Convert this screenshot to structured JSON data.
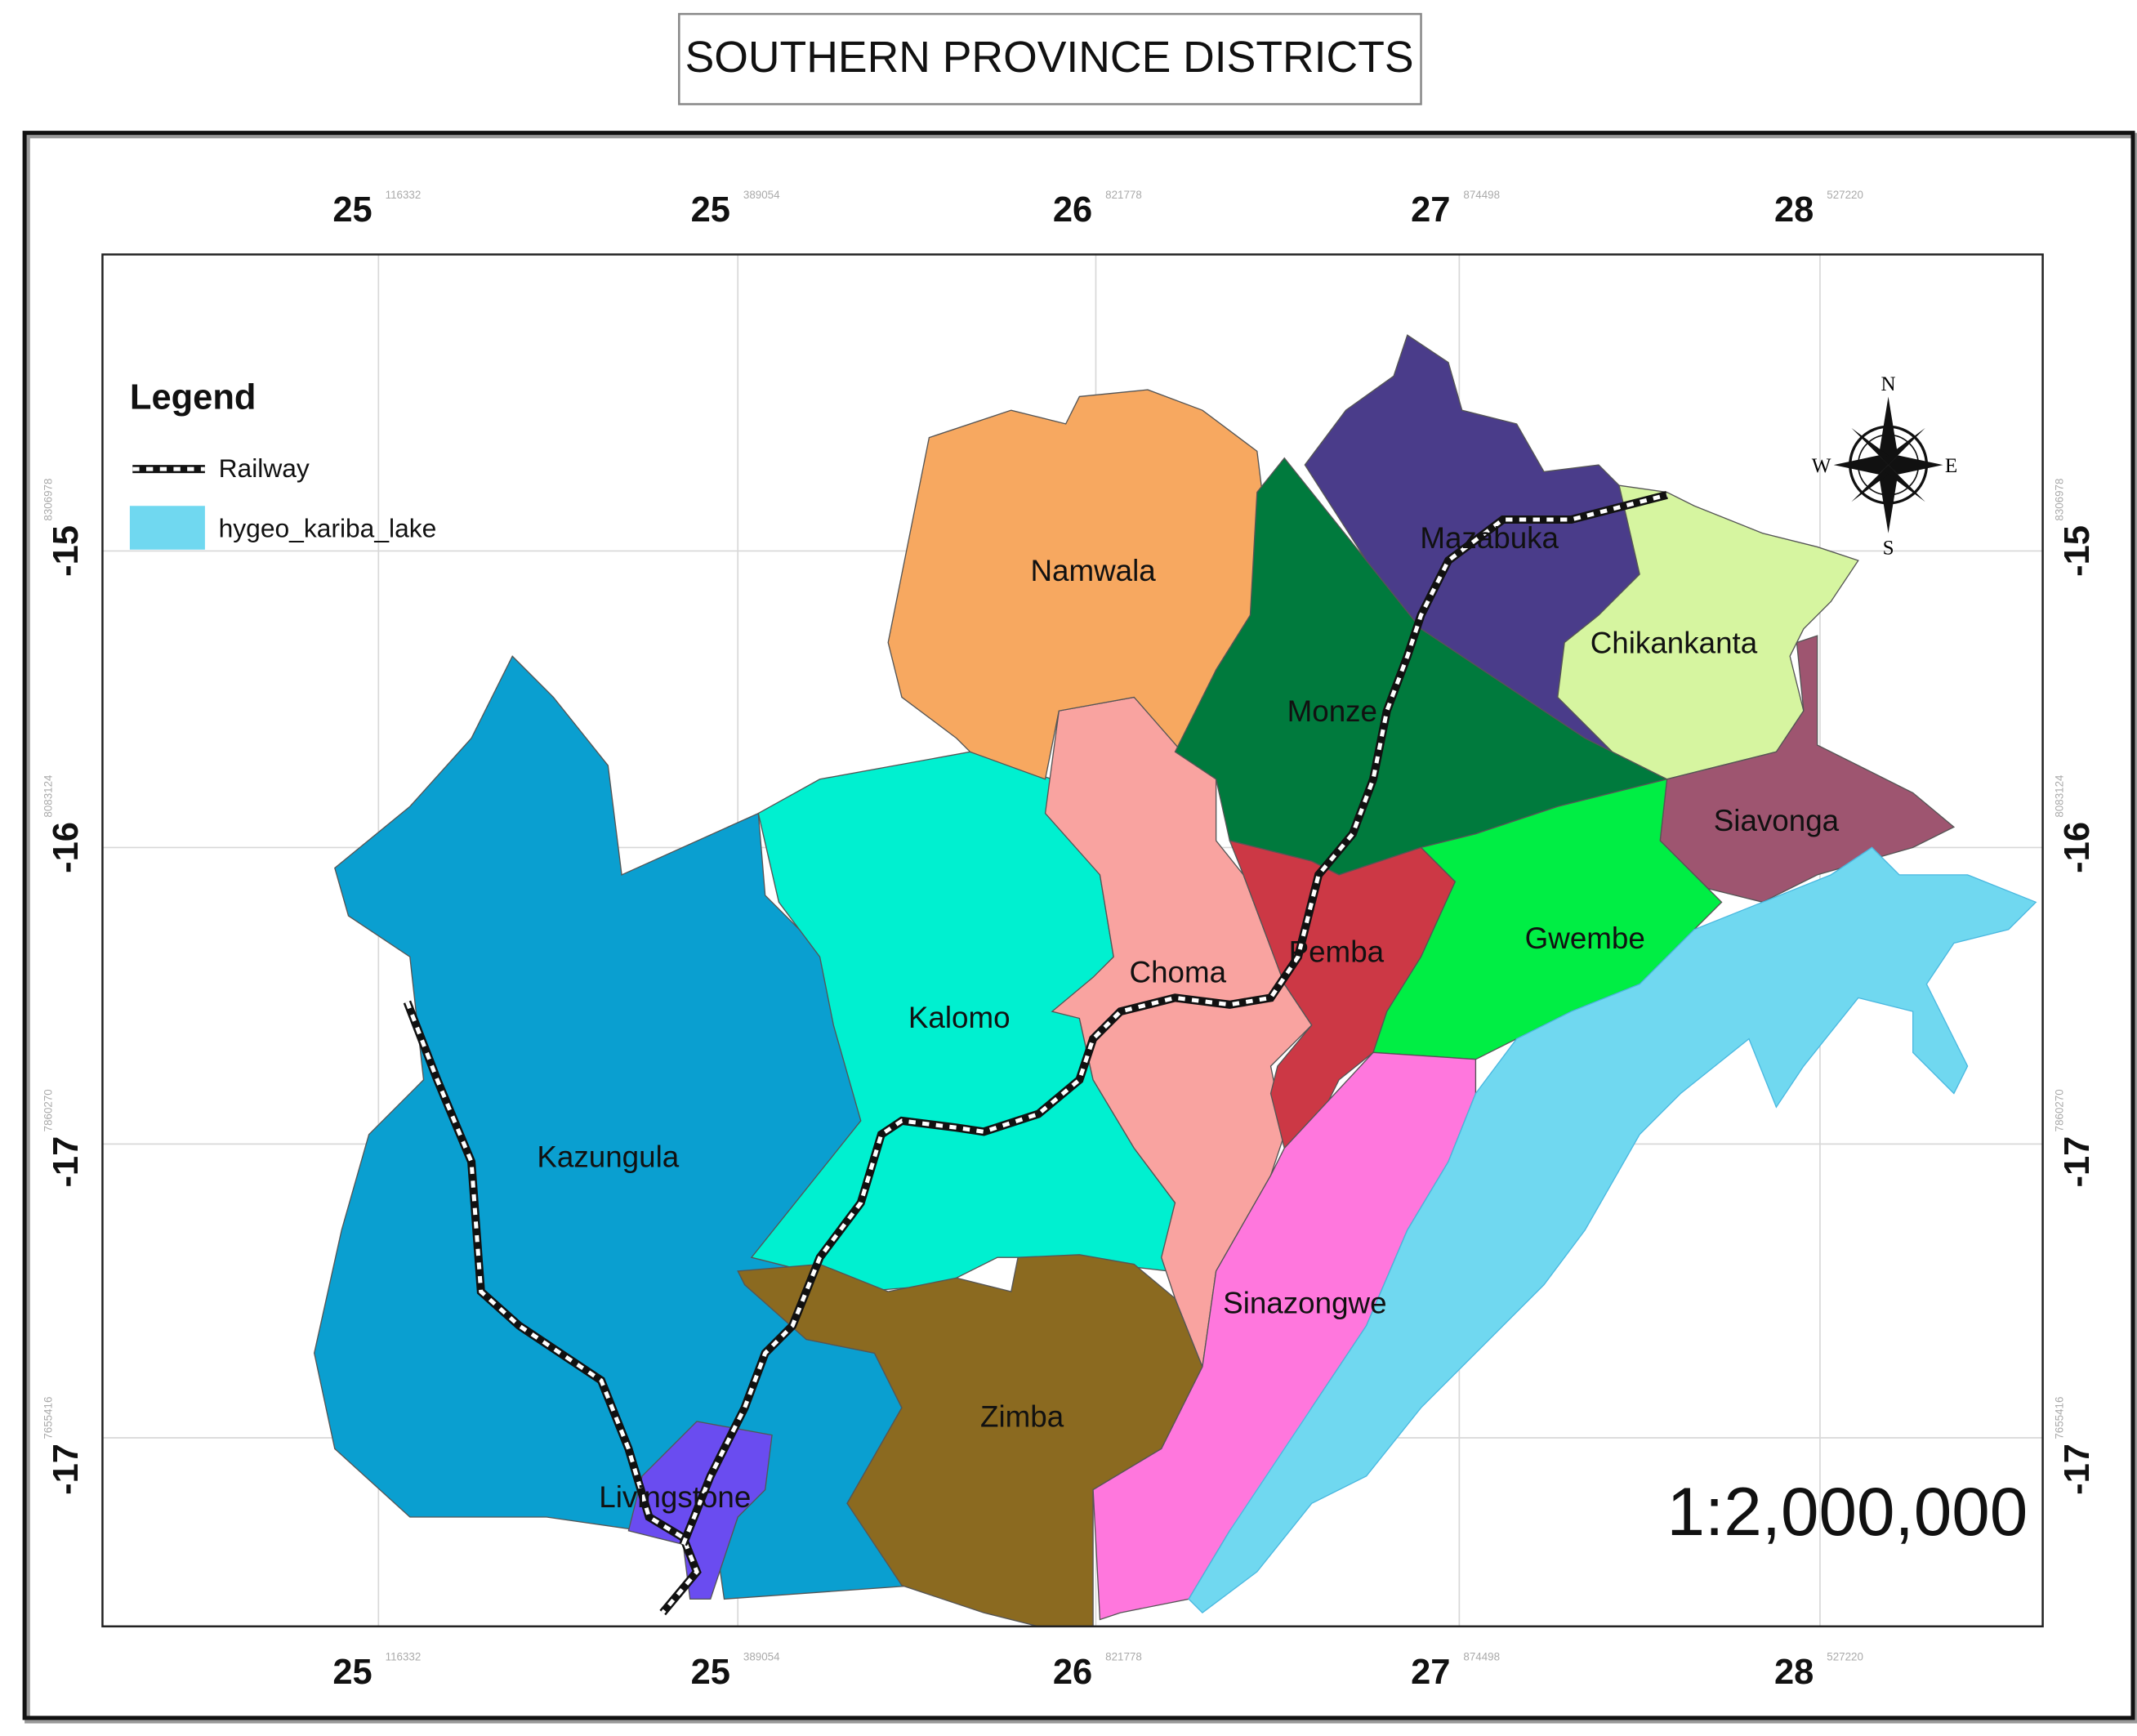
{
  "title": "SOUTHERN PROVINCE DISTRICTS",
  "legend": {
    "title": "Legend",
    "items": [
      "Railway",
      "hygeo_kariba_lake"
    ]
  },
  "compass": {
    "n": "N",
    "e": "E",
    "s": "S",
    "w": "W"
  },
  "scale": "1:2,000,000",
  "districts": [
    "Namwala",
    "Mazabuka",
    "Chikankanta",
    "Monze",
    "Siavonga",
    "Pemba",
    "Gwembe",
    "Choma",
    "Kalomo",
    "Kazungula",
    "Sinazongwe",
    "Zimba",
    "Livingstone"
  ],
  "grid": {
    "columns": [
      {
        "label": "25",
        "sub": "116332"
      },
      {
        "label": "25",
        "sub": "389054"
      },
      {
        "label": "26",
        "sub": "821778"
      },
      {
        "label": "27",
        "sub": "874498"
      },
      {
        "label": "28",
        "sub": "527220"
      }
    ],
    "rows": [
      {
        "label": "-15",
        "sub": "8306978"
      },
      {
        "label": "-16",
        "sub": "8083124"
      },
      {
        "label": "-17",
        "sub": "7860270"
      },
      {
        "label": "-17",
        "sub": "7655416"
      }
    ]
  }
}
